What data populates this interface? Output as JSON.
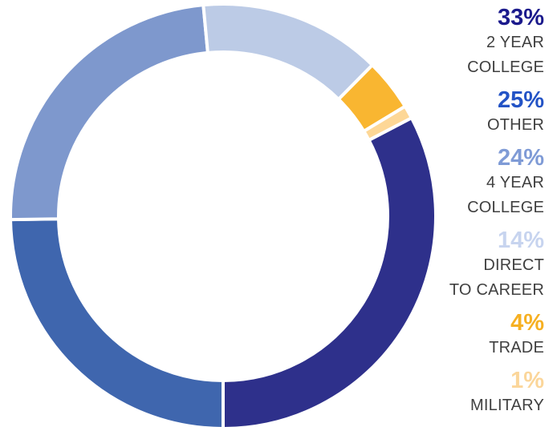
{
  "chart_data": {
    "type": "pie",
    "style": "donut",
    "title": "",
    "segments": [
      {
        "pct_label": "33%",
        "label": "2 YEAR\nCOLLEGE",
        "value": 33,
        "color": "#2e308b"
      },
      {
        "pct_label": "25%",
        "label": "OTHER",
        "value": 25,
        "color": "#3f66ae"
      },
      {
        "pct_label": "24%",
        "label": "4 YEAR\nCOLLEGE",
        "value": 24,
        "color": "#7e98cd"
      },
      {
        "pct_label": "14%",
        "label": "DIRECT\nTO CAREER",
        "value": 14,
        "color": "#bccbe6"
      },
      {
        "pct_label": "4%",
        "label": "TRADE",
        "value": 4,
        "color": "#f9b631"
      },
      {
        "pct_label": "1%",
        "label": "MILITARY",
        "value": 1,
        "color": "#fdd796"
      }
    ],
    "legend_position": "right",
    "pct_colors": [
      "#1b1a8c",
      "#2454c6",
      "#7f9bd6",
      "#c7d4ef",
      "#f6b022",
      "#fbd69a"
    ]
  }
}
